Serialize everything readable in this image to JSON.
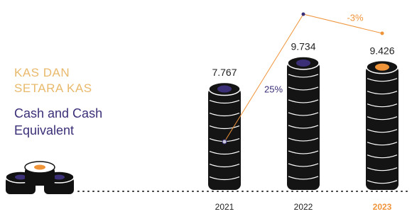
{
  "chart_data": {
    "type": "coin-stack",
    "title": "KAS DAN SETARA KAS",
    "subtitle": "Cash and Cash Equivalent",
    "categories": [
      "2021",
      "2022",
      "2023"
    ],
    "values": [
      7.767,
      9.734,
      9.426
    ],
    "color": "#3b2f78",
    "highlight": "2023",
    "highlight_color": "#f0943a",
    "annotations": [
      "25%",
      "-3%"
    ]
  }
}
